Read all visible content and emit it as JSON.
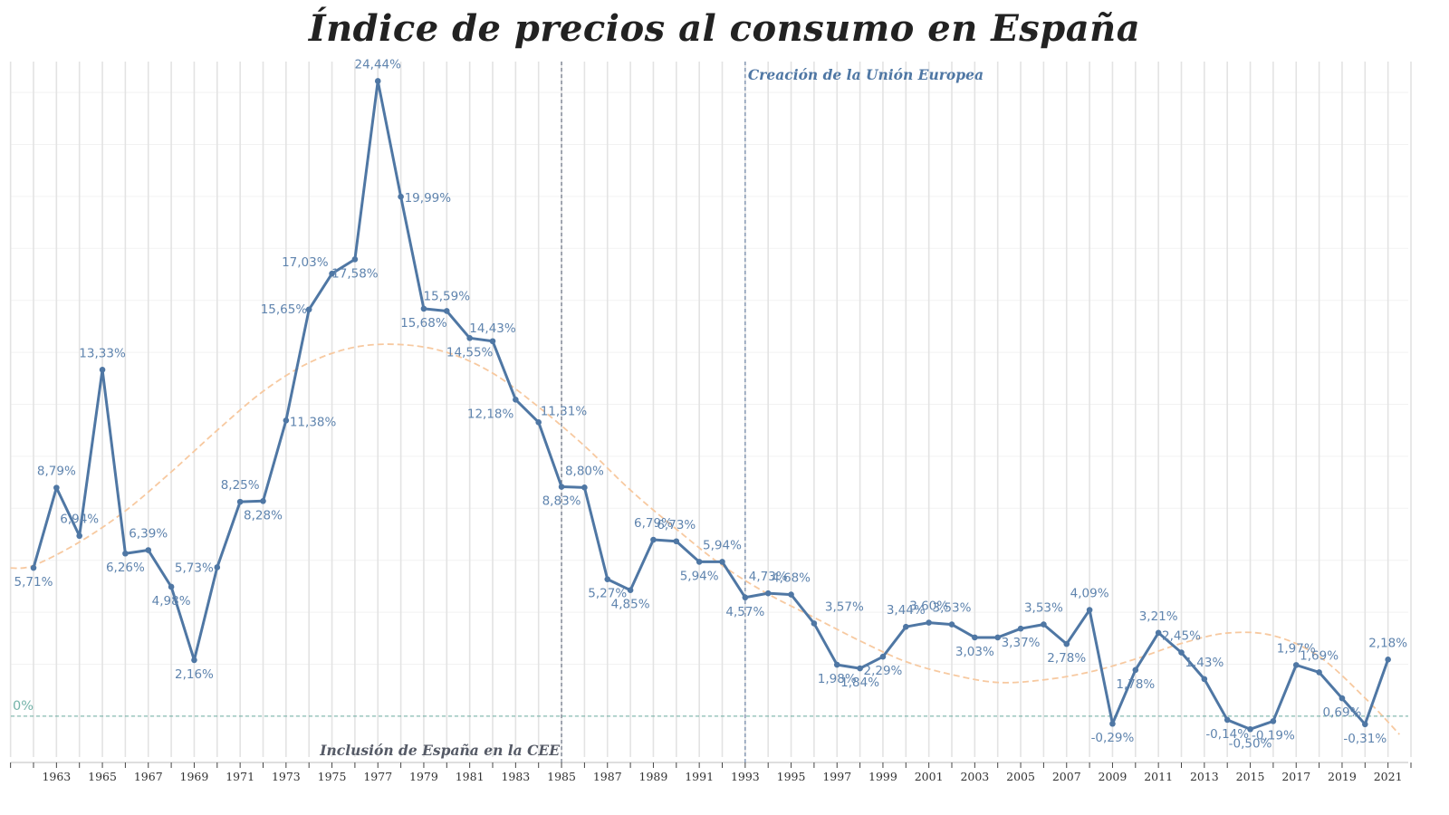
{
  "title": "Índice de precios al consumo en España",
  "colors": {
    "line": "#4f77a4",
    "label": "#5f84ae",
    "trend": "#f7c9a0",
    "zero_line": "#6aaba0",
    "annotation_top": "#4f77a4",
    "annotation_bottom": "#555a66",
    "grid": "#e3e3e3"
  },
  "chart_data": {
    "type": "line",
    "title": "Índice de precios al consumo en España",
    "xlabel": "",
    "ylabel": "",
    "xlim": [
      1961,
      2022
    ],
    "ylim": [
      -2.0,
      26.5
    ],
    "grid": true,
    "x_tick_labels": [
      "1963",
      "1965",
      "1967",
      "1969",
      "1971",
      "1973",
      "1975",
      "1977",
      "1979",
      "1981",
      "1983",
      "1985",
      "1987",
      "1989",
      "1991",
      "1993",
      "1995",
      "1997",
      "1999",
      "2001",
      "2003",
      "2005",
      "2007",
      "2009",
      "2011",
      "2013",
      "2015",
      "2017",
      "2019",
      "2021"
    ],
    "series": [
      {
        "x": [
          1962,
          1963,
          1964,
          1965,
          1966,
          1967,
          1968,
          1969,
          1970,
          1971,
          1972,
          1973,
          1974,
          1975,
          1976,
          1977,
          1978,
          1979,
          1980,
          1981,
          1982,
          1983,
          1984,
          1985,
          1986,
          1987,
          1988,
          1989,
          1990,
          1991,
          1992,
          1993,
          1994,
          1995,
          1996,
          1997,
          1998,
          1999,
          2000,
          2001,
          2002,
          2003,
          2004,
          2005,
          2006,
          2007,
          2008,
          2009,
          2010,
          2011,
          2012,
          2013,
          2014,
          2015,
          2016,
          2017,
          2018,
          2019,
          2020,
          2021
        ],
        "values": [
          5.71,
          8.79,
          6.94,
          13.33,
          6.26,
          6.39,
          4.98,
          2.16,
          5.73,
          8.25,
          8.28,
          11.38,
          15.65,
          17.03,
          17.58,
          24.44,
          19.99,
          15.68,
          15.59,
          14.55,
          14.43,
          12.18,
          11.31,
          8.83,
          8.8,
          5.27,
          4.85,
          6.79,
          6.73,
          5.94,
          5.94,
          4.57,
          4.73,
          4.68,
          3.57,
          1.98,
          1.84,
          2.29,
          3.44,
          3.6,
          3.53,
          3.03,
          3.03,
          3.37,
          3.53,
          2.78,
          4.09,
          -0.29,
          1.78,
          3.21,
          2.45,
          1.43,
          -0.14,
          -0.5,
          -0.19,
          1.97,
          1.69,
          0.69,
          -0.31,
          2.18
        ],
        "labels": [
          "5,71%",
          "8,79%",
          "6,94%",
          "13,33%",
          "6,26%",
          "6,39%",
          "4,98%",
          "2,16%",
          "5,73%",
          "8,25%",
          "8,28%",
          "11,38%",
          "15,65%",
          "17,03%",
          "17,58%",
          "24,44%",
          "19,99%",
          "15,68%",
          "15,59%",
          "14,55%",
          "14,43%",
          "12,18%",
          "11,31%",
          "8,83%",
          "8,80%",
          "5,27%",
          "4,85%",
          "6,79%",
          "6,73%",
          "5,94%",
          "5,94%",
          "4,57%",
          "4,73%",
          "4,68%",
          "3,57%",
          "1,98%",
          "1,84%",
          "2,29%",
          "3,44%",
          "3,60%",
          "3,53%",
          "3,03%",
          "",
          "3,37%",
          "3,53%",
          "2,78%",
          "4,09%",
          "-0,29%",
          "1,78%",
          "3,21%",
          "2,45%",
          "1,43%",
          "-0,14%",
          "-0,50%",
          "-0,19%",
          "1,97%",
          "1,69%",
          "0,69%",
          "-0,31%",
          "2,18%"
        ]
      }
    ],
    "trend_line": {
      "style": "dashed",
      "x": [
        1961,
        1962,
        1964,
        1966,
        1968,
        1970,
        1972,
        1974,
        1976,
        1978,
        1980,
        1982,
        1984,
        1986,
        1988,
        1990,
        1992,
        1994,
        1996,
        1998,
        2000,
        2002,
        2004,
        2006,
        2008,
        2010,
        2012,
        2014,
        2016,
        2018,
        2020,
        2021.5
      ],
      "values": [
        5.7,
        5.8,
        6.7,
        7.9,
        9.4,
        11.0,
        12.5,
        13.6,
        14.2,
        14.3,
        14.0,
        13.2,
        11.9,
        10.4,
        8.7,
        7.2,
        5.8,
        4.7,
        3.8,
        2.9,
        2.1,
        1.6,
        1.3,
        1.4,
        1.7,
        2.2,
        2.8,
        3.2,
        3.1,
        2.3,
        0.7,
        -0.7
      ]
    },
    "reference_lines": [
      {
        "axis": "y",
        "value": 0,
        "label": "0%"
      },
      {
        "axis": "x",
        "value": 1985,
        "label": "Inclusión de España en la CEE"
      },
      {
        "axis": "x",
        "value": 1993,
        "label": "Creación de la Unión Europea"
      }
    ]
  }
}
